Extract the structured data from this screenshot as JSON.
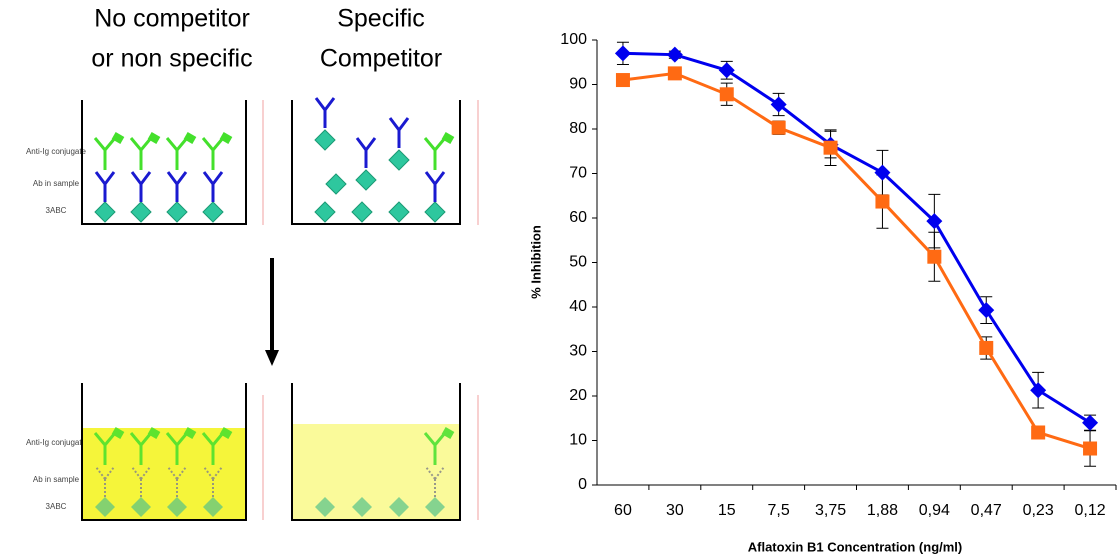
{
  "diagram": {
    "left_title": [
      "No competitor",
      "or non specific"
    ],
    "right_title": [
      "Specific",
      "Competitor"
    ],
    "top_labels": [
      "Anti-Ig conjugate",
      "Ab in sample",
      "3ABC"
    ],
    "bottom_labels": [
      "Anti-Ig conjugate",
      "Ab in sample",
      "3ABC"
    ]
  },
  "chart_data": {
    "type": "line",
    "x_label": "Aflatoxin B1 Concentration (ng/ml)",
    "y_label": "% Inhibition",
    "categories": [
      "60",
      "30",
      "15",
      "7,5",
      "3,75",
      "1,88",
      "0,94",
      "0,47",
      "0,23",
      "0,12"
    ],
    "series": [
      {
        "color": "#0000ee",
        "marker": "diamond",
        "values": [
          97,
          96.7,
          93.2,
          85.5,
          76.5,
          70.2,
          59.3,
          39.3,
          21.3,
          14
        ],
        "errors": [
          2.5,
          0.8,
          2,
          2.5,
          3,
          5,
          6,
          3,
          4,
          1.7
        ]
      },
      {
        "color": "#ff6a13",
        "marker": "square",
        "values": [
          91,
          92.5,
          87.8,
          80.3,
          75.8,
          63.7,
          51.3,
          30.8,
          11.8,
          8.2
        ],
        "errors": [
          1,
          1,
          2.5,
          1.5,
          4,
          6,
          5.5,
          2.5,
          0.5,
          4
        ]
      }
    ],
    "ylim": [
      0,
      100
    ],
    "yticks": [
      0,
      10,
      20,
      30,
      40,
      50,
      60,
      70,
      80,
      90,
      100
    ],
    "grid": false
  }
}
